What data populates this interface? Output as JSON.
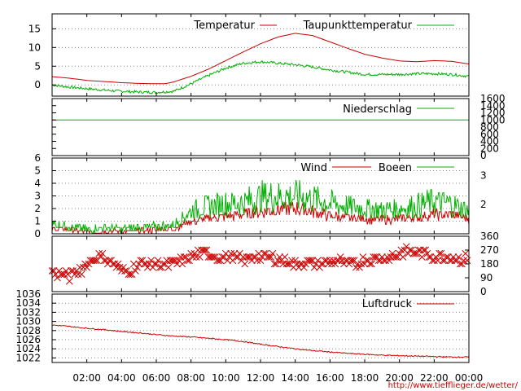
{
  "url_text": "http://www.tiefflieger.de/wetter/",
  "colors": {
    "red": "#cc0000",
    "green": "#00b000",
    "grid": "#888888"
  },
  "x_axis": {
    "tick_hours": [
      2,
      4,
      6,
      8,
      10,
      12,
      14,
      16,
      18,
      20,
      22,
      24
    ],
    "tick_labels": [
      "02:00",
      "04:00",
      "06:00",
      "08:00",
      "10:00",
      "12:00",
      "14:00",
      "16:00",
      "18:00",
      "20:00",
      "22:00",
      "00:00"
    ],
    "range_hours": [
      0,
      24
    ]
  },
  "chart_data": [
    {
      "type": "line",
      "panel": "temperature",
      "x_unit": "hours",
      "y_ticks": [
        0,
        5,
        10,
        15
      ],
      "ylim": [
        -3,
        19
      ],
      "grid": true,
      "legend_placement": "top-right",
      "series": [
        {
          "name": "Temperatur",
          "color": "#cc0000",
          "x": [
            0,
            1,
            2,
            3,
            4,
            5,
            6,
            6.5,
            7,
            8,
            9,
            10,
            11,
            12,
            13,
            14,
            15,
            16,
            17,
            18,
            19,
            20,
            21,
            22,
            23,
            24
          ],
          "y": [
            2.2,
            1.8,
            1.2,
            0.9,
            0.6,
            0.4,
            0.3,
            0.3,
            0.8,
            2.3,
            4.2,
            6.5,
            8.8,
            11,
            12.8,
            13.8,
            13.2,
            11.5,
            9.8,
            8.2,
            7.2,
            6.4,
            6.2,
            6.5,
            6.3,
            5.6
          ]
        },
        {
          "name": "Taupunkttemperatur",
          "color": "#00b000",
          "x": [
            0,
            1,
            2,
            3,
            4,
            5,
            6,
            7,
            8,
            9,
            10,
            11,
            12,
            13,
            14,
            15,
            16,
            17,
            18,
            19,
            20,
            21,
            22,
            23,
            24
          ],
          "y": [
            0,
            -0.6,
            -1,
            -1.4,
            -1.7,
            -1.9,
            -2,
            -1.7,
            0.3,
            2.5,
            4.5,
            5.8,
            6.2,
            5.8,
            5.4,
            4.8,
            4,
            3.4,
            2.8,
            2.8,
            2.8,
            3,
            3,
            2.8,
            2.3
          ]
        }
      ]
    },
    {
      "type": "line",
      "panel": "precipitation",
      "x_unit": "hours",
      "y_ticks": [
        0,
        200,
        400,
        600,
        800,
        1000,
        1200,
        1400,
        1600
      ],
      "ylim": [
        0,
        1600
      ],
      "legend_placement": "top-right",
      "series": [
        {
          "name": "Niederschlag",
          "color": "#00b000",
          "x": [
            0,
            24
          ],
          "y": [
            1000,
            1000
          ]
        }
      ]
    },
    {
      "type": "line",
      "panel": "wind",
      "x_unit": "hours",
      "y_ticks": [
        0,
        1,
        2,
        3,
        4,
        5,
        6
      ],
      "ylim": [
        0,
        6
      ],
      "y2_ticks": [
        2,
        3
      ],
      "grid": true,
      "legend_placement": "top-right",
      "series": [
        {
          "name": "Wind",
          "color": "#cc0000",
          "x": [
            0,
            1,
            2,
            3,
            4,
            5,
            6,
            7,
            8,
            9,
            10,
            11,
            12,
            13,
            14,
            15,
            16,
            17,
            18,
            19,
            20,
            21,
            22,
            23,
            24
          ],
          "y": [
            0.4,
            0.3,
            0.1,
            0.2,
            0.2,
            0.2,
            0.3,
            0.4,
            1.0,
            1.2,
            1.4,
            1.5,
            1.8,
            1.9,
            2.0,
            1.8,
            1.4,
            1.3,
            1.2,
            1.1,
            1.2,
            1.3,
            1.5,
            1.5,
            1.2
          ]
        },
        {
          "name": "Boeen",
          "color": "#00b000",
          "x": [
            0,
            1,
            2,
            3,
            4,
            5,
            6,
            7,
            8,
            9,
            10,
            11,
            12,
            13,
            14,
            15,
            16,
            17,
            18,
            19,
            20,
            21,
            22,
            23,
            24
          ],
          "y": [
            0.8,
            0.6,
            0.3,
            0.5,
            0.4,
            0.5,
            0.6,
            0.7,
            1.8,
            2.2,
            2.4,
            2.5,
            2.9,
            3.0,
            3.0,
            2.8,
            2.4,
            2.2,
            2.0,
            1.9,
            2.0,
            2.2,
            2.6,
            2.3,
            1.8
          ]
        }
      ]
    },
    {
      "type": "scatter",
      "panel": "wind-direction",
      "x_unit": "hours",
      "y_ticks_right": [
        0,
        90,
        180,
        270,
        360
      ],
      "ylim": [
        0,
        360
      ],
      "marker": "x",
      "series": [
        {
          "color": "#cc0000",
          "x": [
            0,
            0.5,
            1,
            1.5,
            2,
            2.5,
            3,
            3.5,
            4,
            4.5,
            5,
            5.5,
            6,
            6.5,
            7,
            7.5,
            8,
            8.5,
            9,
            9.5,
            10,
            10.5,
            11,
            11.5,
            12,
            12.5,
            13,
            13.5,
            14,
            14.5,
            15,
            15.5,
            16,
            16.5,
            17,
            17.5,
            18,
            18.5,
            19,
            19.5,
            20,
            20.5,
            21,
            21.5,
            22,
            22.5,
            23,
            23.5,
            24
          ],
          "y": [
            130,
            115,
            100,
            130,
            180,
            225,
            225,
            180,
            135,
            135,
            180,
            180,
            180,
            180,
            180,
            200,
            225,
            250,
            250,
            225,
            225,
            225,
            200,
            225,
            225,
            225,
            210,
            200,
            180,
            190,
            180,
            180,
            200,
            200,
            180,
            180,
            200,
            210,
            220,
            225,
            250,
            270,
            250,
            245,
            230,
            225,
            225,
            200,
            225
          ]
        }
      ]
    },
    {
      "type": "line",
      "panel": "pressure",
      "x_unit": "hours",
      "y_ticks": [
        1022,
        1024,
        1026,
        1028,
        1030,
        1032,
        1034,
        1036
      ],
      "ylim": [
        1021,
        1036
      ],
      "grid": true,
      "legend_placement": "top-right",
      "series": [
        {
          "name": "Luftdruck",
          "color": "#cc0000",
          "x": [
            0,
            1,
            2,
            3,
            4,
            5,
            6,
            7,
            8,
            9,
            10,
            11,
            12,
            13,
            14,
            15,
            16,
            17,
            18,
            19,
            20,
            21,
            22,
            23,
            24
          ],
          "y": [
            1029.2,
            1028.9,
            1028.5,
            1028.2,
            1027.8,
            1027.5,
            1027.1,
            1026.8,
            1026.6,
            1026.3,
            1026.0,
            1025.6,
            1025.0,
            1024.5,
            1024.0,
            1023.6,
            1023.3,
            1023.0,
            1022.8,
            1022.6,
            1022.5,
            1022.4,
            1022.3,
            1022.2,
            1022.2
          ]
        }
      ]
    }
  ]
}
